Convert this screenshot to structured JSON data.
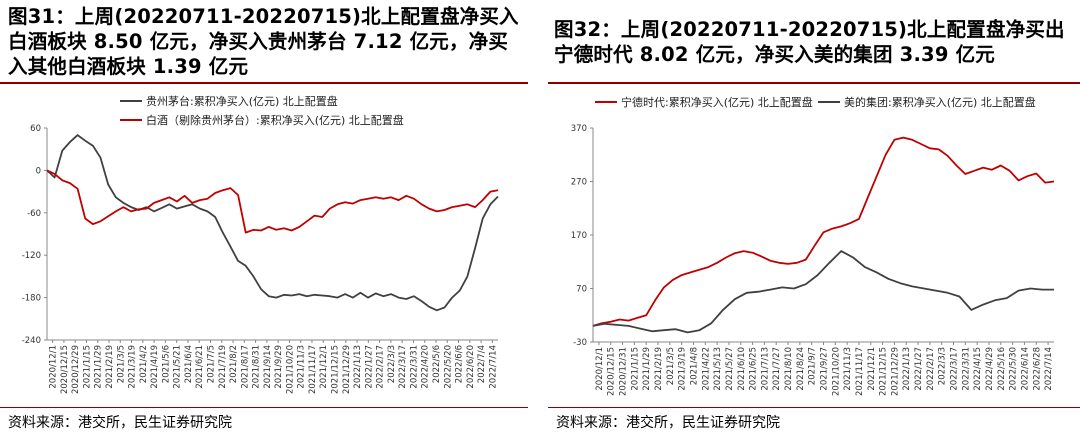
{
  "chart_data": [
    {
      "type": "line",
      "title": "图31：上周(20220711-20220715)北上配置盘净买入白酒板块 8.50 亿元，净买入贵州茅台 7.12 亿元，净买入其他白酒板块 1.39 亿元",
      "source": "资料来源：港交所，民生证券研究院",
      "ylim": [
        -240,
        60
      ],
      "yticks": [
        60,
        0,
        -60,
        -120,
        -180,
        -240
      ],
      "xlabels": [
        "2020/12/1",
        "2020/12/15",
        "2020/12/29",
        "2021/1/15",
        "2021/1/29",
        "2021/2/19",
        "2021/3/5",
        "2021/3/19",
        "2021/4/2",
        "2021/4/19",
        "2021/5/6",
        "2021/5/21",
        "2021/6/4",
        "2021/6/21",
        "2021/7/5",
        "2021/7/19",
        "2021/8/2",
        "2021/8/17",
        "2021/8/31",
        "2021/9/14",
        "2021/9/29",
        "2021/10/20",
        "2021/11/3",
        "2021/11/17",
        "2021/12/1",
        "2021/12/15",
        "2021/12/29",
        "2022/1/13",
        "2022/1/27",
        "2022/2/17",
        "2022/3/3",
        "2022/3/17",
        "2022/3/31",
        "2022/4/20",
        "2022/5/6",
        "2022/5/20",
        "2022/6/6",
        "2022/6/20",
        "2022/7/4",
        "2022/7/14"
      ],
      "series": [
        {
          "name": "贵州茅台:累积净买入(亿元) 北上配置盘",
          "color": "#404040",
          "values": [
            0,
            -10,
            28,
            40,
            50,
            42,
            35,
            18,
            -20,
            -38,
            -46,
            -52,
            -56,
            -52,
            -58,
            -53,
            -48,
            -54,
            -51,
            -48,
            -54,
            -58,
            -66,
            -88,
            -108,
            -128,
            -135,
            -150,
            -168,
            -178,
            -180,
            -176,
            -177,
            -175,
            -178,
            -176,
            -177,
            -178,
            -180,
            -175,
            -180,
            -173,
            -180,
            -174,
            -178,
            -175,
            -180,
            -182,
            -178,
            -185,
            -193,
            -198,
            -194,
            -180,
            -170,
            -150,
            -110,
            -68,
            -48,
            -37
          ]
        },
        {
          "name": "白酒（剔除贵州茅台）:累积净买入(亿元) 北上配置盘",
          "color": "#C00000",
          "values": [
            0,
            -5,
            -14,
            -18,
            -26,
            -68,
            -76,
            -72,
            -65,
            -58,
            -52,
            -58,
            -55,
            -54,
            -46,
            -42,
            -38,
            -44,
            -36,
            -46,
            -42,
            -40,
            -32,
            -28,
            -25,
            -35,
            -88,
            -84,
            -85,
            -80,
            -84,
            -82,
            -85,
            -80,
            -72,
            -64,
            -66,
            -54,
            -48,
            -45,
            -47,
            -42,
            -40,
            -38,
            -40,
            -38,
            -42,
            -36,
            -40,
            -48,
            -54,
            -58,
            -56,
            -52,
            -50,
            -48,
            -52,
            -42,
            -30,
            -28
          ]
        }
      ]
    },
    {
      "type": "line",
      "title": "图32：上周(20220711-20220715)北上配置盘净买出宁德时代 8.02 亿元，净买入美的集团 3.39 亿元",
      "source": "资料来源：港交所，民生证券研究院",
      "ylim": [
        -30,
        370
      ],
      "yticks": [
        370,
        270,
        170,
        70,
        -30
      ],
      "xlabels": [
        "2020/12/1",
        "2020/12/15",
        "2020/12/31",
        "2021/1/15",
        "2021/1/29",
        "2021/2/19",
        "2021/3/5",
        "2021/3/19",
        "2021/4/8",
        "2021/4/22",
        "2021/5/13",
        "2021/5/27",
        "2021/6/10",
        "2021/6/25",
        "2021/7/13",
        "2021/7/27",
        "2021/8/10",
        "2021/8/24",
        "2021/9/7",
        "2021/9/27",
        "2021/10/20",
        "2021/11/3",
        "2021/11/17",
        "2021/12/1",
        "2021/12/15",
        "2021/12/29",
        "2022/1/13",
        "2022/1/27",
        "2022/2/17",
        "2022/3/3",
        "2022/3/17",
        "2022/3/31",
        "2022/4/15",
        "2022/4/29",
        "2022/5/16",
        "2022/5/30",
        "2022/6/14",
        "2022/6/28",
        "2022/7/14"
      ],
      "series": [
        {
          "name": "宁德时代:累积净买入(亿元) 北上配置盘",
          "color": "#C00000",
          "values": [
            0,
            5,
            8,
            12,
            10,
            15,
            20,
            48,
            72,
            86,
            95,
            100,
            105,
            110,
            118,
            128,
            136,
            140,
            137,
            130,
            122,
            118,
            116,
            118,
            124,
            150,
            175,
            182,
            186,
            192,
            200,
            240,
            280,
            320,
            348,
            352,
            348,
            340,
            332,
            330,
            318,
            300,
            284,
            290,
            296,
            292,
            300,
            290,
            272,
            280,
            285,
            268,
            270
          ]
        },
        {
          "name": "美的集团:累积净买入(亿元) 北上配置盘",
          "color": "#404040",
          "values": [
            0,
            4,
            2,
            0,
            -5,
            -10,
            -8,
            -6,
            -12,
            -8,
            5,
            30,
            50,
            62,
            64,
            68,
            72,
            70,
            78,
            95,
            118,
            140,
            128,
            110,
            100,
            88,
            80,
            74,
            70,
            66,
            62,
            55,
            30,
            40,
            48,
            52,
            66,
            70,
            68,
            68
          ]
        }
      ]
    }
  ]
}
